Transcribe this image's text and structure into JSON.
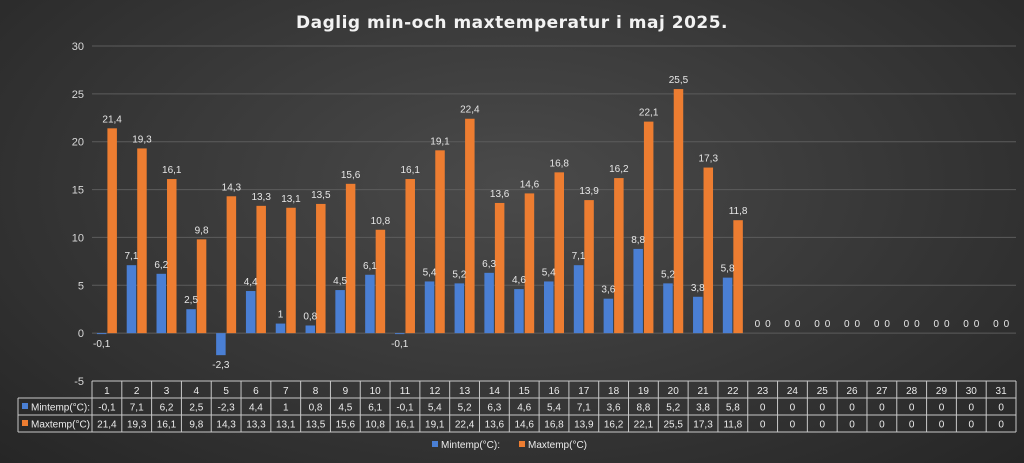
{
  "chart_data": {
    "type": "bar",
    "title": "Daglig min-och maxtemperatur i maj 2025.",
    "ylim": [
      -5,
      30
    ],
    "yticks": [
      -5,
      0,
      5,
      10,
      15,
      20,
      25,
      30
    ],
    "grid": true,
    "legend_position": "bottom",
    "categories": [
      "1",
      "2",
      "3",
      "4",
      "5",
      "6",
      "7",
      "8",
      "9",
      "10",
      "11",
      "12",
      "13",
      "14",
      "15",
      "16",
      "17",
      "18",
      "19",
      "20",
      "21",
      "22",
      "23",
      "24",
      "25",
      "26",
      "27",
      "28",
      "29",
      "30",
      "31"
    ],
    "series": [
      {
        "name": "Mintemp(°C):",
        "color": "#4a7fd4",
        "values": [
          -0.1,
          7.1,
          6.2,
          2.5,
          -2.3,
          4.4,
          1,
          0.8,
          4.5,
          6.1,
          -0.1,
          5.4,
          5.2,
          6.3,
          4.6,
          5.4,
          7.1,
          3.6,
          8.8,
          5.2,
          3.8,
          5.8,
          0,
          0,
          0,
          0,
          0,
          0,
          0,
          0,
          0
        ],
        "labels": [
          "-0,1",
          "7,1",
          "6,2",
          "2,5",
          "-2,3",
          "4,4",
          "1",
          "0,8",
          "4,5",
          "6,1",
          "-0,1",
          "5,4",
          "5,2",
          "6,3",
          "4,6",
          "5,4",
          "7,1",
          "3,6",
          "8,8",
          "5,2",
          "3,8",
          "5,8",
          "0",
          "0",
          "0",
          "0",
          "0",
          "0",
          "0",
          "0",
          "0"
        ]
      },
      {
        "name": "Maxtemp(°C)",
        "color": "#ed7d31",
        "values": [
          21.4,
          19.3,
          16.1,
          9.8,
          14.3,
          13.3,
          13.1,
          13.5,
          15.6,
          10.8,
          16.1,
          19.1,
          22.4,
          13.6,
          14.6,
          16.8,
          13.9,
          16.2,
          22.1,
          25.5,
          17.3,
          11.8,
          0,
          0,
          0,
          0,
          0,
          0,
          0,
          0,
          0
        ],
        "labels": [
          "21,4",
          "19,3",
          "16,1",
          "9,8",
          "14,3",
          "13,3",
          "13,1",
          "13,5",
          "15,6",
          "10,8",
          "16,1",
          "19,1",
          "22,4",
          "13,6",
          "14,6",
          "16,8",
          "13,9",
          "16,2",
          "22,1",
          "25,5",
          "17,3",
          "11,8",
          "0",
          "0",
          "0",
          "0",
          "0",
          "0",
          "0",
          "0",
          "0"
        ]
      }
    ]
  }
}
